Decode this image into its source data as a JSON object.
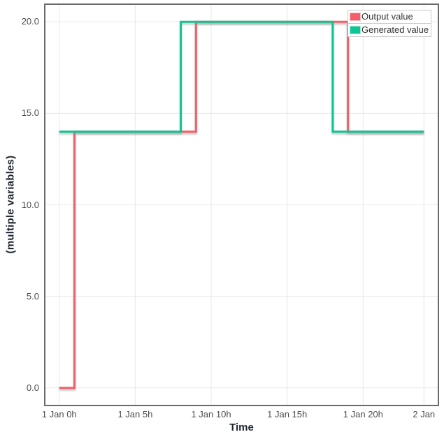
{
  "chart_data": {
    "type": "line",
    "step": "after",
    "title": "",
    "xlabel": "Time",
    "ylabel": "(multiple variables)",
    "xlim": [
      -1,
      25
    ],
    "ylim": [
      -1,
      21
    ],
    "grid": true,
    "grid_color": "#e8e8e8",
    "x_ticks": [
      {
        "t": 0,
        "label": "1 Jan 0h"
      },
      {
        "t": 5,
        "label": "1 Jan 5h"
      },
      {
        "t": 10,
        "label": "1 Jan 10h"
      },
      {
        "t": 15,
        "label": "1 Jan 15h"
      },
      {
        "t": 20,
        "label": "1 Jan 20h"
      },
      {
        "t": 24,
        "label": "2 Jan"
      }
    ],
    "y_ticks": [
      {
        "v": 0,
        "label": "0.0"
      },
      {
        "v": 5,
        "label": "5.0"
      },
      {
        "v": 10,
        "label": "10.0"
      },
      {
        "v": 15,
        "label": "15.0"
      },
      {
        "v": 20,
        "label": "20.0"
      }
    ],
    "series": [
      {
        "name": "Output value",
        "color": "#f25f68",
        "points": [
          [
            0,
            0
          ],
          [
            1,
            0
          ],
          [
            1,
            14
          ],
          [
            9,
            14
          ],
          [
            9,
            20
          ],
          [
            19,
            20
          ],
          [
            19,
            14
          ],
          [
            24,
            14
          ]
        ]
      },
      {
        "name": "Generated value",
        "color": "#10c494",
        "points": [
          [
            0,
            14
          ],
          [
            8,
            14
          ],
          [
            8,
            20
          ],
          [
            18,
            20
          ],
          [
            18,
            14
          ],
          [
            24,
            14
          ]
        ]
      }
    ],
    "legend": {
      "position": "top-right"
    }
  }
}
